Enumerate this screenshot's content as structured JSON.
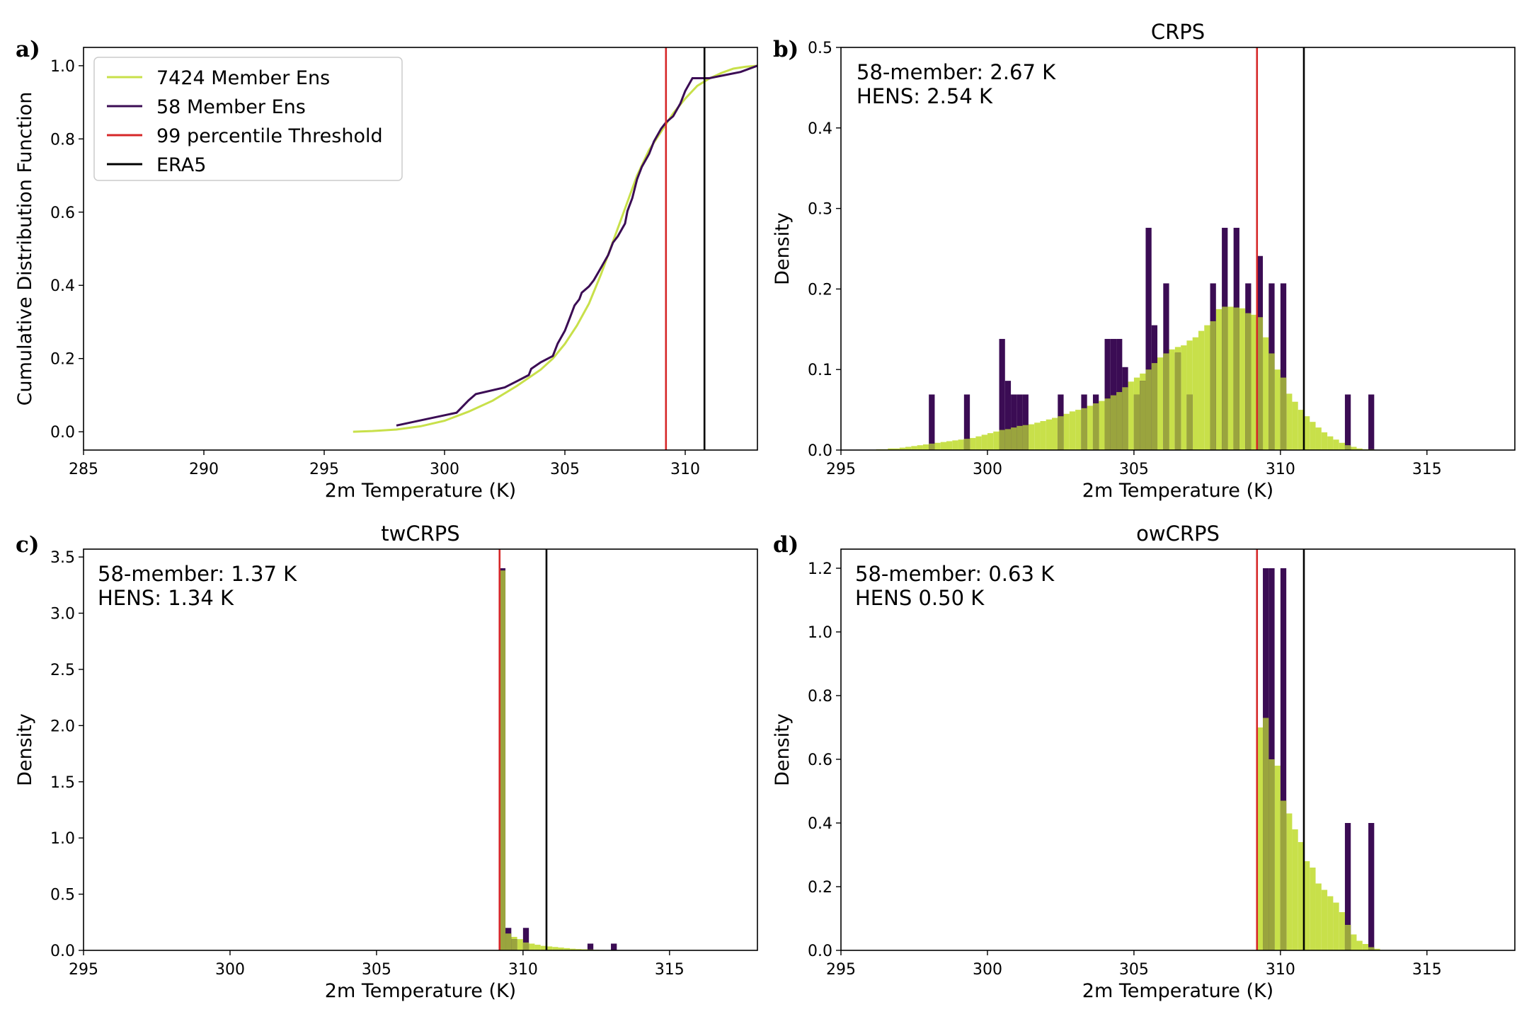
{
  "colors": {
    "hens": "#c8e04a",
    "ens58": "#3b0c54",
    "threshold": "#d62728",
    "era5": "#000000",
    "overlap": "#9aa43e"
  },
  "chart_data": [
    {
      "panel_label": "a)",
      "type": "line",
      "title": "",
      "xlabel": "2m Temperature (K)",
      "ylabel": "Cumulative Distribution Function",
      "xlim": [
        285,
        313
      ],
      "ylim": [
        -0.05,
        1.05
      ],
      "xticks": [
        285,
        290,
        295,
        300,
        305,
        310
      ],
      "yticks": [
        0.0,
        0.2,
        0.4,
        0.6,
        0.8,
        1.0
      ],
      "xtick_labels": [
        "285",
        "290",
        "295",
        "300",
        "305",
        "310"
      ],
      "ytick_labels": [
        "0.0",
        "0.2",
        "0.4",
        "0.6",
        "0.8",
        "1.0"
      ],
      "threshold": 309.2,
      "era5": 310.8,
      "legend": {
        "placement": "top-left",
        "entries": [
          {
            "label": "7424 Member Ens",
            "color": "#c8e04a"
          },
          {
            "label": "58 Member Ens",
            "color": "#3b0c54"
          },
          {
            "label": "99 percentile Threshold",
            "color": "#d62728"
          },
          {
            "label": "ERA5",
            "color": "#000000"
          }
        ]
      },
      "series": [
        {
          "name": "7424 Member Ens",
          "x": [
            296.2,
            297,
            298,
            299,
            300,
            301,
            302,
            303,
            304,
            304.5,
            305,
            305.5,
            306,
            306.5,
            307,
            307.5,
            308,
            308.5,
            309,
            309.2,
            309.5,
            310,
            310.5,
            311,
            311.5,
            312,
            312.5,
            313
          ],
          "y": [
            0,
            0.002,
            0.006,
            0.015,
            0.03,
            0.055,
            0.085,
            0.125,
            0.17,
            0.2,
            0.24,
            0.29,
            0.35,
            0.43,
            0.52,
            0.61,
            0.7,
            0.77,
            0.82,
            0.84,
            0.87,
            0.91,
            0.945,
            0.965,
            0.98,
            0.992,
            0.997,
            1.0
          ]
        },
        {
          "name": "58 Member Ens",
          "x": [
            298,
            300.5,
            301,
            301.3,
            302.5,
            303,
            303.5,
            303.6,
            304,
            304.5,
            304.7,
            305,
            305.2,
            305.4,
            305.6,
            305.7,
            306,
            306.2,
            306.5,
            306.8,
            307,
            307.2,
            307.5,
            307.6,
            307.8,
            308,
            308.2,
            308.5,
            308.7,
            309,
            309.2,
            309.5,
            309.8,
            310,
            310.3,
            311,
            312.3,
            313
          ],
          "y": [
            0.017,
            0.052,
            0.086,
            0.103,
            0.121,
            0.138,
            0.155,
            0.172,
            0.19,
            0.207,
            0.241,
            0.276,
            0.31,
            0.345,
            0.362,
            0.38,
            0.397,
            0.414,
            0.448,
            0.483,
            0.517,
            0.534,
            0.569,
            0.603,
            0.638,
            0.69,
            0.724,
            0.759,
            0.793,
            0.828,
            0.845,
            0.862,
            0.897,
            0.931,
            0.966,
            0.966,
            0.983,
            1.0
          ]
        }
      ]
    },
    {
      "panel_label": "b)",
      "type": "bar",
      "title": "CRPS",
      "xlabel": "2m Temperature (K)",
      "ylabel": "Density",
      "xlim": [
        295,
        318
      ],
      "ylim": [
        0,
        0.5
      ],
      "xticks": [
        295,
        300,
        305,
        310,
        315
      ],
      "yticks": [
        0.0,
        0.1,
        0.2,
        0.3,
        0.4,
        0.5
      ],
      "xtick_labels": [
        "295",
        "300",
        "305",
        "310",
        "315"
      ],
      "ytick_labels": [
        "0.0",
        "0.1",
        "0.2",
        "0.3",
        "0.4",
        "0.5"
      ],
      "threshold": 309.2,
      "era5": 310.8,
      "annotation": [
        "58-member: 2.67 K",
        "HENS: 2.54 K"
      ],
      "bin_width": 0.2,
      "series": [
        {
          "name": "7424 Member Ens",
          "x": [
            296.2,
            296.4,
            296.6,
            296.8,
            297.0,
            297.2,
            297.4,
            297.6,
            297.8,
            298.0,
            298.2,
            298.4,
            298.6,
            298.8,
            299.0,
            299.2,
            299.4,
            299.6,
            299.8,
            300.0,
            300.2,
            300.4,
            300.6,
            300.8,
            301.0,
            301.2,
            301.4,
            301.6,
            301.8,
            302.0,
            302.2,
            302.4,
            302.6,
            302.8,
            303.0,
            303.2,
            303.4,
            303.6,
            303.8,
            304.0,
            304.2,
            304.4,
            304.6,
            304.8,
            305.0,
            305.2,
            305.4,
            305.6,
            305.8,
            306.0,
            306.2,
            306.4,
            306.6,
            306.8,
            307.0,
            307.2,
            307.4,
            307.6,
            307.8,
            308.0,
            308.2,
            308.4,
            308.6,
            308.8,
            309.0,
            309.2,
            309.4,
            309.6,
            309.8,
            310.0,
            310.2,
            310.4,
            310.6,
            310.8,
            311.0,
            311.2,
            311.4,
            311.6,
            311.8,
            312.0,
            312.2,
            312.4,
            312.6,
            312.8,
            313.0,
            313.2
          ],
          "y": [
            0.001,
            0.001,
            0.002,
            0.002,
            0.003,
            0.004,
            0.005,
            0.006,
            0.007,
            0.008,
            0.009,
            0.01,
            0.011,
            0.012,
            0.013,
            0.014,
            0.015,
            0.017,
            0.019,
            0.021,
            0.023,
            0.025,
            0.026,
            0.028,
            0.03,
            0.031,
            0.032,
            0.034,
            0.036,
            0.038,
            0.04,
            0.042,
            0.045,
            0.048,
            0.05,
            0.052,
            0.055,
            0.058,
            0.061,
            0.064,
            0.068,
            0.072,
            0.078,
            0.085,
            0.09,
            0.095,
            0.1,
            0.108,
            0.115,
            0.12,
            0.125,
            0.128,
            0.13,
            0.136,
            0.14,
            0.148,
            0.155,
            0.16,
            0.175,
            0.178,
            0.178,
            0.177,
            0.176,
            0.17,
            0.168,
            0.165,
            0.14,
            0.12,
            0.1,
            0.09,
            0.07,
            0.06,
            0.05,
            0.042,
            0.035,
            0.028,
            0.022,
            0.017,
            0.013,
            0.009,
            0.006,
            0.004,
            0.002,
            0.001,
            0.001,
            0.0
          ]
        },
        {
          "name": "58 Member Ens",
          "x": [
            298.0,
            299.2,
            300.4,
            300.6,
            300.8,
            301.0,
            301.2,
            302.4,
            303.2,
            303.6,
            304.0,
            304.2,
            304.4,
            304.6,
            305.0,
            305.2,
            305.4,
            305.6,
            306.0,
            306.4,
            306.8,
            307.6,
            308.0,
            308.4,
            308.8,
            309.2,
            309.6,
            310.0,
            312.2,
            313.0
          ],
          "y": [
            0.069,
            0.069,
            0.138,
            0.086,
            0.069,
            0.069,
            0.069,
            0.069,
            0.069,
            0.069,
            0.138,
            0.138,
            0.138,
            0.103,
            0.069,
            0.086,
            0.276,
            0.155,
            0.207,
            0.121,
            0.069,
            0.207,
            0.276,
            0.276,
            0.207,
            0.241,
            0.207,
            0.207,
            0.069,
            0.069
          ]
        }
      ]
    },
    {
      "panel_label": "c)",
      "type": "bar",
      "title": "twCRPS",
      "xlabel": "2m Temperature (K)",
      "ylabel": "Density",
      "xlim": [
        295,
        318
      ],
      "ylim": [
        0,
        3.57
      ],
      "xticks": [
        295,
        300,
        305,
        310,
        315
      ],
      "yticks": [
        0.0,
        0.5,
        1.0,
        1.5,
        2.0,
        2.5,
        3.0,
        3.5
      ],
      "xtick_labels": [
        "295",
        "300",
        "305",
        "310",
        "315"
      ],
      "ytick_labels": [
        "0.0",
        "0.5",
        "1.0",
        "1.5",
        "2.0",
        "2.5",
        "3.0",
        "3.5"
      ],
      "threshold": 309.2,
      "era5": 310.8,
      "annotation": [
        "58-member: 1.37 K",
        "HENS: 1.34 K"
      ],
      "bin_width": 0.2,
      "series": [
        {
          "name": "7424 Member Ens",
          "x": [
            309.2,
            309.4,
            309.6,
            309.8,
            310.0,
            310.2,
            310.4,
            310.6,
            310.8,
            311.0,
            311.2,
            311.4,
            311.6,
            311.8,
            312.0,
            312.2,
            312.4,
            312.6,
            312.8,
            313.0,
            313.2
          ],
          "y": [
            3.38,
            0.15,
            0.12,
            0.1,
            0.07,
            0.06,
            0.05,
            0.04,
            0.035,
            0.03,
            0.025,
            0.02,
            0.015,
            0.012,
            0.01,
            0.008,
            0.006,
            0.004,
            0.003,
            0.002,
            0.001
          ]
        },
        {
          "name": "58 Member Ens",
          "x": [
            309.2,
            309.4,
            309.6,
            310.0,
            312.2,
            313.0
          ],
          "y": [
            3.4,
            0.2,
            0.1,
            0.2,
            0.06,
            0.06
          ]
        }
      ]
    },
    {
      "panel_label": "d)",
      "type": "bar",
      "title": "owCRPS",
      "xlabel": "2m Temperature (K)",
      "ylabel": "Density",
      "xlim": [
        295,
        318
      ],
      "ylim": [
        0,
        1.26
      ],
      "xticks": [
        295,
        300,
        305,
        310,
        315
      ],
      "yticks": [
        0.0,
        0.2,
        0.4,
        0.6,
        0.8,
        1.0,
        1.2
      ],
      "xtick_labels": [
        "295",
        "300",
        "305",
        "310",
        "315"
      ],
      "ytick_labels": [
        "0.0",
        "0.2",
        "0.4",
        "0.6",
        "0.8",
        "1.0",
        "1.2"
      ],
      "threshold": 309.2,
      "era5": 310.8,
      "annotation": [
        "58-member: 0.63 K",
        " HENS 0.50 K"
      ],
      "bin_width": 0.2,
      "series": [
        {
          "name": "7424 Member Ens",
          "x": [
            309.2,
            309.4,
            309.6,
            309.8,
            310.0,
            310.2,
            310.4,
            310.6,
            310.8,
            311.0,
            311.2,
            311.4,
            311.6,
            311.8,
            312.0,
            312.2,
            312.4,
            312.6,
            312.8,
            313.0,
            313.2
          ],
          "y": [
            0.7,
            0.73,
            0.6,
            0.58,
            0.47,
            0.43,
            0.38,
            0.34,
            0.28,
            0.26,
            0.21,
            0.19,
            0.17,
            0.15,
            0.12,
            0.08,
            0.05,
            0.03,
            0.02,
            0.01,
            0.005
          ]
        },
        {
          "name": "58 Member Ens",
          "x": [
            309.4,
            309.6,
            310.0,
            312.2,
            313.0
          ],
          "y": [
            1.2,
            1.2,
            1.2,
            0.4,
            0.4
          ]
        }
      ]
    }
  ]
}
